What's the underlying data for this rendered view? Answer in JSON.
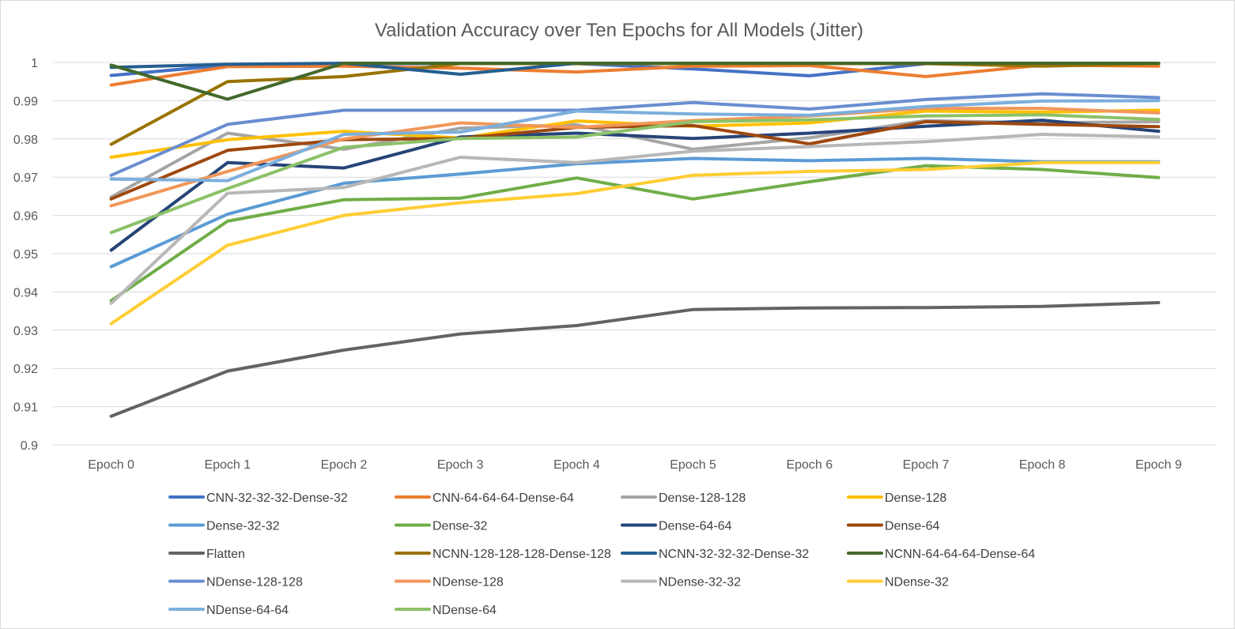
{
  "chart_data": {
    "type": "line",
    "title": "Validation Accuracy over Ten Epochs for All Models (Jitter)",
    "xlabel": "",
    "ylabel": "",
    "categories": [
      "Epoch 0",
      "Epoch 1",
      "Epoch 2",
      "Epoch 3",
      "Epoch 4",
      "Epoch 5",
      "Epoch 6",
      "Epoch 7",
      "Epoch 8",
      "Epoch 9"
    ],
    "ylim": [
      0.9,
      1.0
    ],
    "yticks": [
      "0.9",
      "0.91",
      "0.92",
      "0.93",
      "0.94",
      "0.95",
      "0.96",
      "0.97",
      "0.98",
      "0.99",
      "1"
    ],
    "grid": "horizontal",
    "legend_position": "bottom",
    "series": [
      {
        "name": "CNN-32-32-32-Dense-32",
        "color": "#4472C4",
        "values": [
          0.9966,
          0.9993,
          0.9997,
          0.9997,
          0.9997,
          0.9983,
          0.9965,
          0.9997,
          0.9997,
          0.9997
        ]
      },
      {
        "name": "CNN-64-64-64-Dense-64",
        "color": "#ED7D31",
        "values": [
          0.9941,
          0.9989,
          0.999,
          0.9985,
          0.9975,
          0.999,
          0.9992,
          0.9963,
          0.9993,
          0.999
        ]
      },
      {
        "name": "Dense-128-128",
        "color": "#A5A5A5",
        "values": [
          0.9648,
          0.9815,
          0.9773,
          0.9828,
          0.9837,
          0.9773,
          0.9803,
          0.9848,
          0.9842,
          0.9845
        ]
      },
      {
        "name": "Dense-128",
        "color": "#FFC000",
        "values": [
          0.9752,
          0.9798,
          0.982,
          0.9802,
          0.9847,
          0.9833,
          0.9842,
          0.9873,
          0.987,
          0.9875
        ]
      },
      {
        "name": "Dense-32-32",
        "color": "#5B9BD5",
        "values": [
          0.9466,
          0.9603,
          0.9684,
          0.9708,
          0.9735,
          0.9749,
          0.9743,
          0.9749,
          0.974,
          0.974
        ]
      },
      {
        "name": "Dense-32",
        "color": "#70AD47",
        "values": [
          0.9377,
          0.9585,
          0.9641,
          0.9645,
          0.9698,
          0.9643,
          0.9688,
          0.973,
          0.972,
          0.9699
        ]
      },
      {
        "name": "Dense-64-64",
        "color": "#264478",
        "values": [
          0.9509,
          0.9738,
          0.9724,
          0.9805,
          0.9815,
          0.9801,
          0.9815,
          0.9833,
          0.9849,
          0.982
        ]
      },
      {
        "name": "Dense-64",
        "color": "#9E480E",
        "values": [
          0.9643,
          0.977,
          0.9798,
          0.9801,
          0.983,
          0.9835,
          0.9787,
          0.9845,
          0.9838,
          0.9832
        ]
      },
      {
        "name": "Flatten",
        "color": "#636363",
        "values": [
          0.9075,
          0.9193,
          0.9248,
          0.929,
          0.9312,
          0.9354,
          0.9358,
          0.9359,
          0.9362,
          0.9372
        ]
      },
      {
        "name": "NCNN-128-128-128-Dense-128",
        "color": "#997300",
        "values": [
          0.9786,
          0.995,
          0.9963,
          0.9997,
          0.9997,
          0.9997,
          0.9997,
          0.9997,
          0.999,
          0.9997
        ]
      },
      {
        "name": "NCNN-32-32-32-Dense-32",
        "color": "#255E91",
        "values": [
          0.9987,
          0.9995,
          0.9998,
          0.9969,
          0.9998,
          0.9998,
          0.9998,
          0.9998,
          0.9998,
          0.9998
        ]
      },
      {
        "name": "NCNN-64-64-64-Dense-64",
        "color": "#43682B",
        "values": [
          0.9993,
          0.9904,
          0.9998,
          0.9998,
          0.9998,
          0.9998,
          0.9998,
          0.9998,
          0.9998,
          0.9998
        ]
      },
      {
        "name": "NDense-128-128",
        "color": "#698ED0",
        "values": [
          0.9705,
          0.9838,
          0.9875,
          0.9875,
          0.9875,
          0.9895,
          0.9878,
          0.9903,
          0.9918,
          0.9908
        ]
      },
      {
        "name": "NDense-128",
        "color": "#F1975A",
        "values": [
          0.9625,
          0.9715,
          0.98,
          0.9842,
          0.983,
          0.9848,
          0.986,
          0.988,
          0.988,
          0.9868
        ]
      },
      {
        "name": "NDense-32-32",
        "color": "#B7B7B7",
        "values": [
          0.937,
          0.9658,
          0.9673,
          0.9752,
          0.9738,
          0.9768,
          0.978,
          0.9793,
          0.9812,
          0.9805
        ]
      },
      {
        "name": "NDense-32",
        "color": "#FFCD33",
        "values": [
          0.9317,
          0.9522,
          0.96,
          0.9633,
          0.9657,
          0.9705,
          0.9715,
          0.972,
          0.9738,
          0.9738
        ]
      },
      {
        "name": "NDense-64-64",
        "color": "#7CAFDD",
        "values": [
          0.9695,
          0.9691,
          0.9812,
          0.9818,
          0.9873,
          0.9865,
          0.9862,
          0.9885,
          0.9899,
          0.99
        ]
      },
      {
        "name": "NDense-64",
        "color": "#8CC168",
        "values": [
          0.9555,
          0.967,
          0.9778,
          0.9801,
          0.9805,
          0.9845,
          0.985,
          0.986,
          0.9863,
          0.9851
        ]
      }
    ]
  }
}
